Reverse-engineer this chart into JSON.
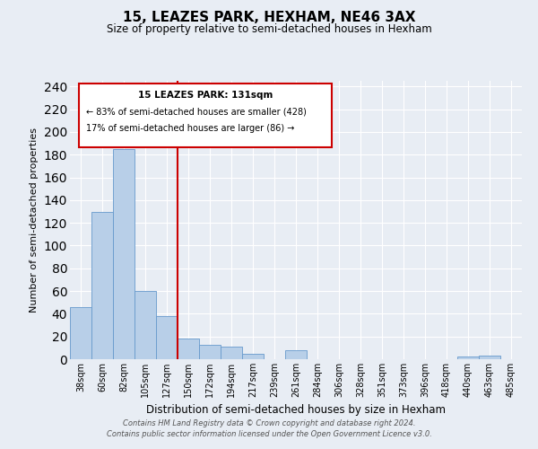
{
  "title": "15, LEAZES PARK, HEXHAM, NE46 3AX",
  "subtitle": "Size of property relative to semi-detached houses in Hexham",
  "xlabel": "Distribution of semi-detached houses by size in Hexham",
  "ylabel": "Number of semi-detached properties",
  "bin_labels": [
    "38sqm",
    "60sqm",
    "82sqm",
    "105sqm",
    "127sqm",
    "150sqm",
    "172sqm",
    "194sqm",
    "217sqm",
    "239sqm",
    "261sqm",
    "284sqm",
    "306sqm",
    "328sqm",
    "351sqm",
    "373sqm",
    "396sqm",
    "418sqm",
    "440sqm",
    "463sqm",
    "485sqm"
  ],
  "bar_heights": [
    46,
    130,
    185,
    60,
    38,
    18,
    13,
    11,
    5,
    0,
    8,
    0,
    0,
    0,
    0,
    0,
    0,
    0,
    2,
    3,
    0
  ],
  "bar_color": "#b8cfe8",
  "bar_edge_color": "#6699cc",
  "vline_color": "#cc0000",
  "vline_x_index": 4,
  "annotation_line1": "15 LEAZES PARK: 131sqm",
  "annotation_line2": "← 83% of semi-detached houses are smaller (428)",
  "annotation_line3": "17% of semi-detached houses are larger (86) →",
  "annotation_box_color": "#cc0000",
  "ylim": [
    0,
    245
  ],
  "ytick_max": 240,
  "ytick_step": 20,
  "footer_line1": "Contains HM Land Registry data © Crown copyright and database right 2024.",
  "footer_line2": "Contains public sector information licensed under the Open Government Licence v3.0.",
  "background_color": "#e8edf4",
  "grid_color": "#ffffff",
  "title_fontsize": 11,
  "subtitle_fontsize": 8.5,
  "ylabel_fontsize": 8,
  "xlabel_fontsize": 8.5,
  "tick_fontsize": 7,
  "footer_fontsize": 6
}
